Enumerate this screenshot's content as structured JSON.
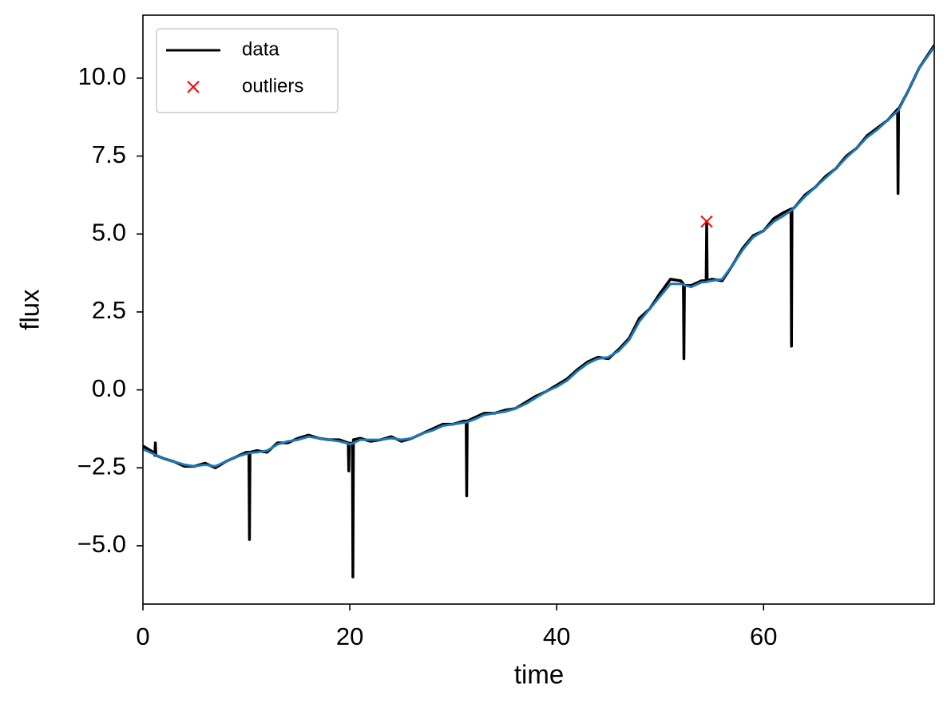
{
  "chart_data": {
    "type": "line",
    "xlabel": "time",
    "ylabel": "flux",
    "xlim": [
      0,
      76.5
    ],
    "ylim": [
      -6.87,
      12.02
    ],
    "xticks": [
      0,
      20,
      40,
      60
    ],
    "yticks": [
      {
        "value": -5,
        "label": "−5.0"
      },
      {
        "value": -2.5,
        "label": "−2.5"
      },
      {
        "value": 0,
        "label": "0.0"
      },
      {
        "value": 2.5,
        "label": "2.5"
      },
      {
        "value": 5,
        "label": "5.0"
      },
      {
        "value": 7.5,
        "label": "7.5"
      },
      {
        "value": 10,
        "label": "10.0"
      }
    ],
    "legend": "upper left",
    "x": [
      0,
      1,
      1.15,
      1.2,
      1.25,
      2,
      3,
      4,
      5,
      6,
      7,
      8,
      9,
      10,
      10.25,
      10.3,
      10.35,
      11,
      12,
      13,
      14,
      15,
      16,
      17,
      18,
      19,
      19.85,
      19.9,
      19.95,
      20,
      20.25,
      20.3,
      20.35,
      21,
      22,
      23,
      24,
      25,
      26,
      27,
      28,
      29,
      30,
      31,
      31.25,
      31.3,
      31.35,
      32,
      33,
      34,
      35,
      36,
      37,
      38,
      39,
      40,
      41,
      42,
      43,
      44,
      45,
      46,
      47,
      48,
      49,
      50,
      51,
      52,
      52.25,
      52.3,
      52.35,
      53,
      54,
      54.45,
      54.5,
      54.55,
      55,
      56,
      57,
      58,
      59,
      60,
      61,
      62,
      62.65,
      62.7,
      62.75,
      63,
      64,
      65,
      66,
      67,
      68,
      69,
      70,
      71,
      72,
      72.95,
      73,
      73.05,
      74,
      75,
      76.5
    ],
    "series": [
      {
        "name": "data",
        "color": "#000000",
        "marker": "line",
        "values": [
          -1.8,
          -2.0,
          -2.1,
          -1.7,
          -2.1,
          -2.2,
          -2.3,
          -2.45,
          -2.45,
          -2.35,
          -2.5,
          -2.3,
          -2.15,
          -2.0,
          -2.0,
          -4.8,
          -2.0,
          -1.95,
          -2.0,
          -1.7,
          -1.7,
          -1.55,
          -1.45,
          -1.55,
          -1.6,
          -1.6,
          -1.7,
          -2.6,
          -1.7,
          -1.75,
          -1.7,
          -6.0,
          -1.6,
          -1.55,
          -1.65,
          -1.6,
          -1.5,
          -1.65,
          -1.55,
          -1.4,
          -1.25,
          -1.1,
          -1.1,
          -1.0,
          -1.0,
          -3.4,
          -1.0,
          -0.9,
          -0.75,
          -0.75,
          -0.65,
          -0.6,
          -0.4,
          -0.2,
          -0.05,
          0.15,
          0.35,
          0.65,
          0.9,
          1.05,
          1.0,
          1.3,
          1.65,
          2.3,
          2.6,
          3.1,
          3.55,
          3.5,
          3.4,
          1.0,
          3.35,
          3.35,
          3.5,
          3.5,
          5.4,
          3.5,
          3.55,
          3.5,
          4.0,
          4.55,
          4.95,
          5.1,
          5.5,
          5.7,
          5.8,
          1.4,
          5.8,
          5.85,
          6.25,
          6.5,
          6.85,
          7.1,
          7.5,
          7.75,
          8.15,
          8.4,
          8.65,
          9.0,
          6.3,
          9.0,
          9.6,
          10.3,
          11.05
        ]
      },
      {
        "color": "#1f77b4",
        "marker": "line",
        "values": [
          -1.9,
          -2.05,
          -2.08,
          -2.09,
          -2.1,
          -2.2,
          -2.3,
          -2.4,
          -2.45,
          -2.4,
          -2.45,
          -2.3,
          -2.15,
          -2.05,
          -2.03,
          -2.02,
          -2.02,
          -2.0,
          -1.95,
          -1.75,
          -1.65,
          -1.6,
          -1.5,
          -1.55,
          -1.6,
          -1.65,
          -1.72,
          -1.73,
          -1.74,
          -1.75,
          -1.72,
          -1.71,
          -1.7,
          -1.6,
          -1.6,
          -1.6,
          -1.55,
          -1.6,
          -1.55,
          -1.4,
          -1.3,
          -1.15,
          -1.1,
          -1.05,
          -1.04,
          -1.04,
          -1.03,
          -0.95,
          -0.8,
          -0.75,
          -0.7,
          -0.6,
          -0.45,
          -0.25,
          -0.05,
          0.1,
          0.3,
          0.6,
          0.85,
          1.0,
          1.05,
          1.25,
          1.6,
          2.2,
          2.6,
          3.0,
          3.4,
          3.4,
          3.38,
          3.37,
          3.36,
          3.3,
          3.45,
          3.46,
          3.47,
          3.47,
          3.5,
          3.55,
          4.0,
          4.5,
          4.9,
          5.1,
          5.4,
          5.6,
          5.75,
          5.76,
          5.78,
          5.85,
          6.2,
          6.5,
          6.8,
          7.1,
          7.45,
          7.75,
          8.1,
          8.35,
          8.65,
          8.94,
          8.95,
          8.97,
          9.6,
          10.3,
          11.0
        ]
      },
      {
        "name": "outliers",
        "color": "#ff0000",
        "marker": "x",
        "x": [
          54.5
        ],
        "values": [
          5.4
        ]
      }
    ]
  }
}
